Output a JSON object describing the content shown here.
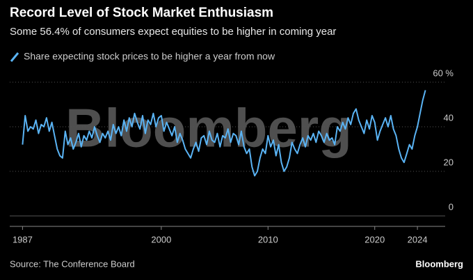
{
  "chart_data": {
    "type": "line",
    "title": "Record Level of Stock Market Enthusiasm",
    "subtitle": "Some 56.4% of consumers expect equities to be higher in coming year",
    "watermark": "Bloomberg",
    "source": "Source: The Conference Board",
    "brand": "Bloomberg",
    "x": [
      1987,
      1987.25,
      1987.5,
      1987.75,
      1988,
      1988.25,
      1988.5,
      1988.75,
      1989,
      1989.25,
      1989.5,
      1989.75,
      1990,
      1990.25,
      1990.5,
      1990.75,
      1991,
      1991.25,
      1991.5,
      1991.75,
      1992,
      1992.25,
      1992.5,
      1992.75,
      1993,
      1993.25,
      1993.5,
      1993.75,
      1994,
      1994.25,
      1994.5,
      1994.75,
      1995,
      1995.25,
      1995.5,
      1995.75,
      1996,
      1996.25,
      1996.5,
      1996.75,
      1997,
      1997.25,
      1997.5,
      1997.75,
      1998,
      1998.25,
      1998.5,
      1998.75,
      1999,
      1999.25,
      1999.5,
      1999.75,
      2000,
      2000.25,
      2000.5,
      2000.75,
      2001,
      2001.25,
      2001.5,
      2001.75,
      2002,
      2002.25,
      2002.5,
      2002.75,
      2003,
      2003.25,
      2003.5,
      2003.75,
      2004,
      2004.25,
      2004.5,
      2004.75,
      2005,
      2005.25,
      2005.5,
      2005.75,
      2006,
      2006.25,
      2006.5,
      2006.75,
      2007,
      2007.25,
      2007.5,
      2007.75,
      2008,
      2008.25,
      2008.5,
      2008.75,
      2009,
      2009.25,
      2009.5,
      2009.75,
      2010,
      2010.25,
      2010.5,
      2010.75,
      2011,
      2011.25,
      2011.5,
      2011.75,
      2012,
      2012.25,
      2012.5,
      2012.75,
      2013,
      2013.25,
      2013.5,
      2013.75,
      2014,
      2014.25,
      2014.5,
      2014.75,
      2015,
      2015.25,
      2015.5,
      2015.75,
      2016,
      2016.25,
      2016.5,
      2016.75,
      2017,
      2017.25,
      2017.5,
      2017.75,
      2018,
      2018.25,
      2018.5,
      2018.75,
      2019,
      2019.25,
      2019.5,
      2019.75,
      2020,
      2020.25,
      2020.5,
      2020.75,
      2021,
      2021.25,
      2021.5,
      2021.75,
      2022,
      2022.25,
      2022.5,
      2022.75,
      2023,
      2023.25,
      2023.5,
      2023.75,
      2024,
      2024.25,
      2024.5,
      2024.75
    ],
    "series": [
      {
        "name": "Share expecting stock prices to be higher a year from now",
        "color": "#5ab4f5",
        "values": [
          32,
          45,
          38,
          40,
          39,
          43,
          37,
          41,
          40,
          44,
          38,
          42,
          36,
          30,
          27,
          26,
          38,
          32,
          35,
          30,
          33,
          37,
          31,
          36,
          34,
          38,
          35,
          40,
          36,
          33,
          37,
          35,
          38,
          34,
          41,
          37,
          40,
          36,
          43,
          38,
          44,
          40,
          46,
          42,
          39,
          45,
          37,
          43,
          41,
          46,
          40,
          44,
          45,
          38,
          42,
          39,
          36,
          40,
          33,
          37,
          34,
          30,
          28,
          26,
          30,
          33,
          29,
          35,
          36,
          32,
          38,
          34,
          33,
          37,
          31,
          36,
          35,
          39,
          33,
          37,
          36,
          32,
          38,
          31,
          28,
          30,
          22,
          18,
          20,
          26,
          30,
          28,
          36,
          31,
          34,
          27,
          32,
          24,
          20,
          22,
          26,
          33,
          30,
          28,
          32,
          35,
          31,
          36,
          34,
          37,
          33,
          38,
          36,
          33,
          37,
          34,
          35,
          32,
          40,
          38,
          42,
          39,
          44,
          41,
          46,
          48,
          43,
          40,
          37,
          43,
          39,
          45,
          42,
          34,
          38,
          41,
          44,
          40,
          45,
          39,
          36,
          30,
          26,
          24,
          28,
          32,
          30,
          36,
          40,
          46,
          52,
          56.4
        ]
      }
    ],
    "xlim": [
      1985.8,
      2026.6
    ],
    "xticks": [
      1987,
      2000,
      2010,
      2020,
      2024
    ],
    "ylim": [
      0,
      60
    ],
    "yticks": [
      0,
      20,
      40,
      {
        "value": 60,
        "label": "60 %"
      }
    ],
    "grid": true
  }
}
